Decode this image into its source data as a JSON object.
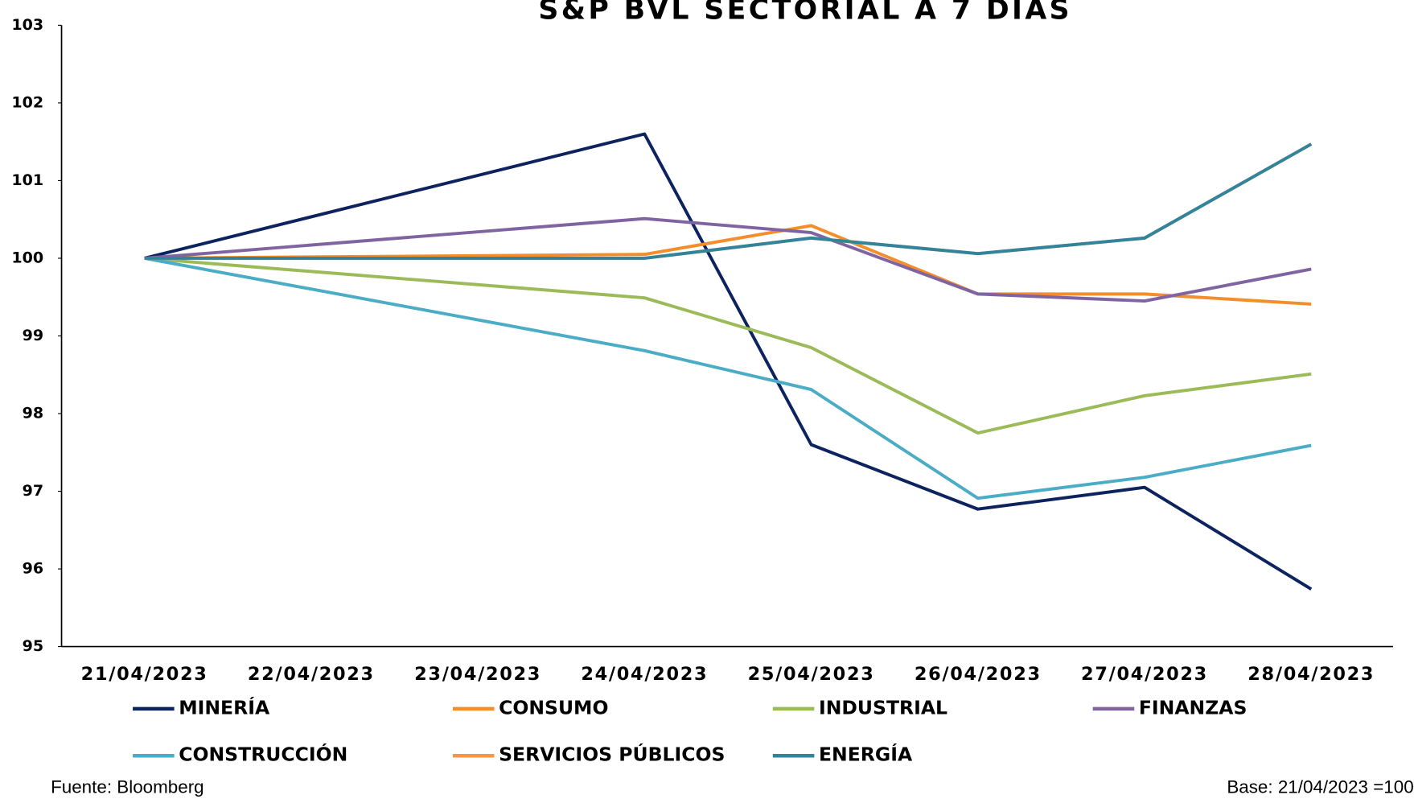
{
  "chart_data": {
    "type": "line",
    "title": "S&P BVL SECTORIAL A 7 DÍAS",
    "xticks": [
      "21/04/2023",
      "22/04/2023",
      "23/04/2023",
      "24/04/2023",
      "25/04/2023",
      "26/04/2023",
      "27/04/2023",
      "28/04/2023"
    ],
    "x": [
      "21/04/2023",
      "24/04/2023",
      "25/04/2023",
      "26/04/2023",
      "27/04/2023",
      "28/04/2023"
    ],
    "ylim": [
      95,
      103
    ],
    "yticks": [
      95,
      96,
      97,
      98,
      99,
      100,
      101,
      102,
      103
    ],
    "series": [
      {
        "name": "MINERÍA",
        "color": "#0d2360",
        "values": [
          100,
          101.6,
          97.6,
          96.77,
          97.05,
          95.74
        ]
      },
      {
        "name": "CONSUMO",
        "color": "#f28e2b",
        "values": [
          100,
          100.05,
          100.42,
          99.54,
          99.54,
          99.41
        ]
      },
      {
        "name": "INDUSTRIAL",
        "color": "#9bbb59",
        "values": [
          100,
          99.49,
          98.85,
          97.75,
          98.23,
          98.51
        ]
      },
      {
        "name": "FINANZAS",
        "color": "#8064a2",
        "values": [
          100,
          100.51,
          100.33,
          99.54,
          99.45,
          99.86
        ]
      },
      {
        "name": "CONSTRUCCIÓN",
        "color": "#4bacc6",
        "values": [
          100,
          98.81,
          98.31,
          96.91,
          97.18,
          97.59
        ]
      },
      {
        "name": "SERVICIOS PÚBLICOS",
        "color": "#f79646",
        "values": [
          100,
          100,
          100.26,
          100.06,
          100.26,
          101.47
        ]
      },
      {
        "name": "ENERGÍA",
        "color": "#31849b",
        "values": [
          100,
          100,
          100.26,
          100.06,
          100.26,
          101.47
        ]
      }
    ],
    "source": "Fuente: Bloomberg",
    "note": "Base:  21/04/2023 =100"
  }
}
